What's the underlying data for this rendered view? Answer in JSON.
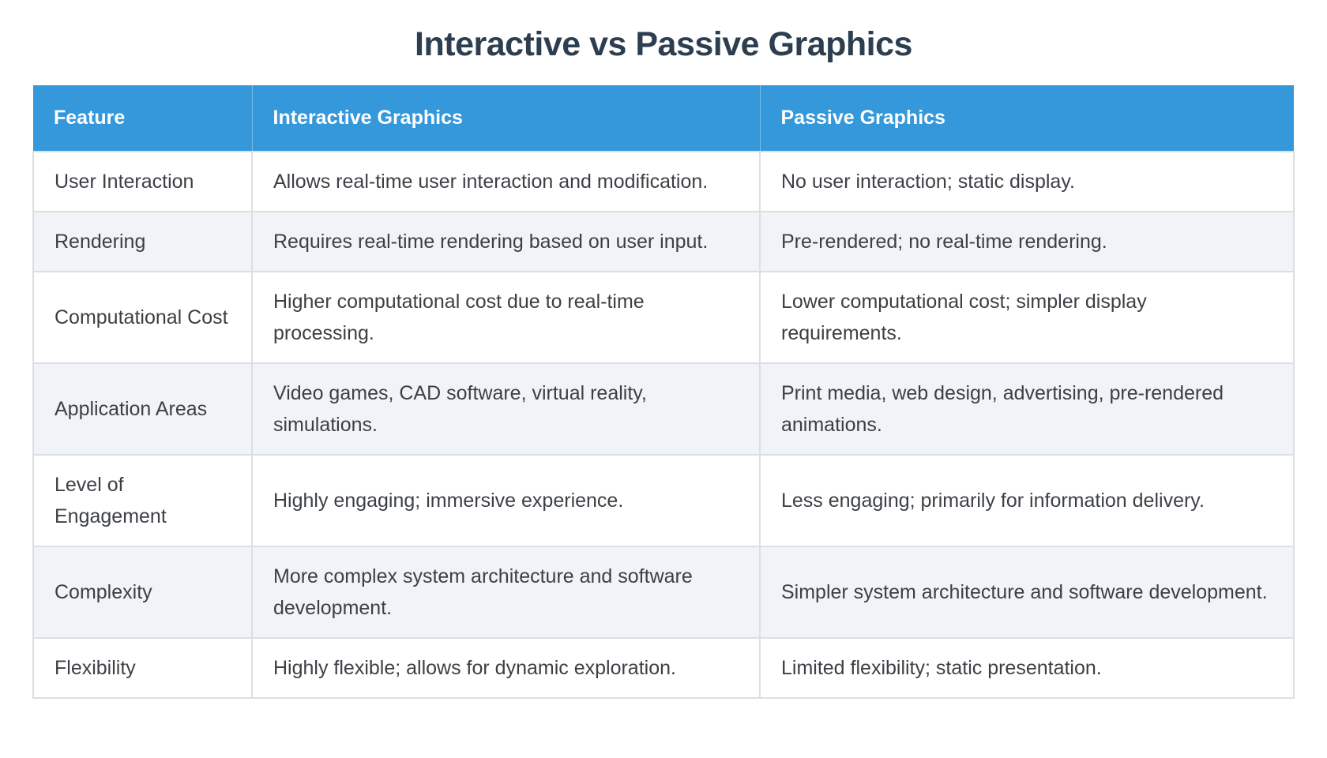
{
  "page": {
    "title": "Interactive vs Passive Graphics"
  },
  "theme": {
    "header_bg": "#3498db",
    "header_text": "#ffffff",
    "title_color": "#2c3e50",
    "body_text": "#3c4045",
    "row_bg": "#ffffff",
    "row_alt_bg": "#f0f4f8",
    "border_color": "#dcdee1",
    "page_bg": "#ffffff"
  },
  "table": {
    "headers": [
      "Feature",
      "Interactive Graphics",
      "Passive Graphics"
    ],
    "rows": [
      {
        "feature": "User Interaction",
        "interactive": "Allows real-time user interaction and modification.",
        "passive": "No user interaction; static display."
      },
      {
        "feature": "Rendering",
        "interactive": "Requires real-time rendering based on user input.",
        "passive": "Pre-rendered; no real-time rendering."
      },
      {
        "feature": "Computational Cost",
        "interactive": "Higher computational cost due to real-time processing.",
        "passive": "Lower computational cost; simpler display requirements."
      },
      {
        "feature": "Application Areas",
        "interactive": "Video games, CAD software, virtual reality, simulations.",
        "passive": "Print media, web design, advertising, pre-rendered animations."
      },
      {
        "feature": "Level of Engagement",
        "interactive": "Highly engaging; immersive experience.",
        "passive": "Less engaging; primarily for information delivery."
      },
      {
        "feature": "Complexity",
        "interactive": "More complex system architecture and software development.",
        "passive": "Simpler system architecture and software development."
      },
      {
        "feature": "Flexibility",
        "interactive": "Highly flexible; allows for dynamic exploration.",
        "passive": "Limited flexibility; static presentation."
      }
    ]
  }
}
